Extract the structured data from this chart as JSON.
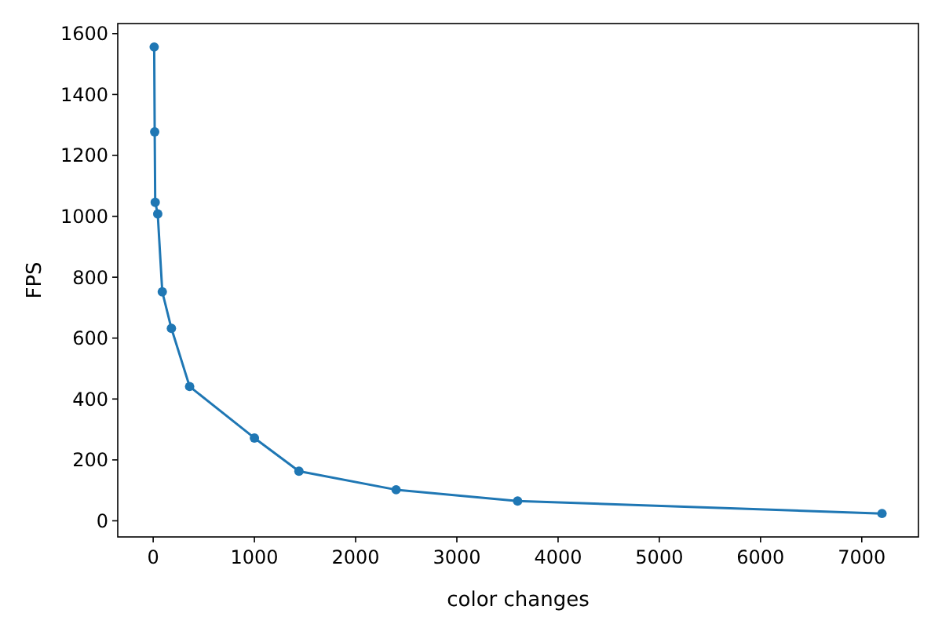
{
  "chart_data": {
    "type": "line",
    "xlabel": "color changes",
    "ylabel": "FPS",
    "marker": "circle",
    "line_style": "solid",
    "grid": false,
    "xlim": [
      -350,
      7560
    ],
    "ylim": [
      -53,
      1633
    ],
    "xticks": [
      0,
      1000,
      2000,
      3000,
      4000,
      5000,
      6000,
      7000
    ],
    "yticks": [
      0,
      200,
      400,
      600,
      800,
      1000,
      1200,
      1400,
      1600
    ],
    "series": [
      {
        "color": "#1f77b4",
        "x": [
          10,
          15,
          20,
          45,
          90,
          180,
          360,
          1000,
          1440,
          2400,
          3600,
          7200
        ],
        "values": [
          1556,
          1277,
          1046,
          1008,
          752,
          632,
          441,
          272,
          163,
          102,
          65,
          24
        ]
      }
    ]
  }
}
